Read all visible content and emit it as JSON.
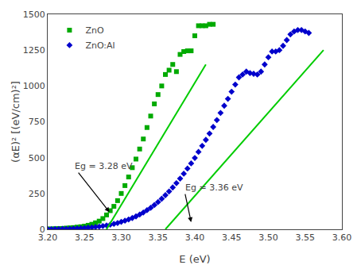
{
  "chart_data": {
    "type": "scatter",
    "xlabel": "E (eV)",
    "ylabel": "(αE)² [(eV/cm)²]",
    "xlim": [
      3.2,
      3.6
    ],
    "ylim": [
      0,
      1500
    ],
    "xticks": [
      {
        "value": 3.2,
        "label": "3.20"
      },
      3.25,
      {
        "value": 3.3,
        "label": "3.30"
      },
      3.35,
      {
        "value": 3.4,
        "label": "3.40"
      },
      3.45,
      {
        "value": 3.5,
        "label": "3.50"
      },
      3.55,
      {
        "value": 3.6,
        "label": "3.60"
      }
    ],
    "yticks": [
      0,
      250,
      500,
      750,
      1000,
      1250,
      1500
    ],
    "grid": false,
    "legend": "upper left",
    "series": [
      {
        "name": "ZnO",
        "type": "scatter",
        "color": "#00aa00",
        "marker": "square",
        "x": [
          3.2,
          3.205,
          3.21,
          3.215,
          3.22,
          3.225,
          3.23,
          3.235,
          3.24,
          3.245,
          3.25,
          3.255,
          3.26,
          3.265,
          3.27,
          3.275,
          3.28,
          3.285,
          3.29,
          3.295,
          3.3,
          3.305,
          3.31,
          3.315,
          3.32,
          3.325,
          3.33,
          3.335,
          3.34,
          3.345,
          3.35,
          3.355,
          3.36,
          3.365,
          3.37,
          3.375,
          3.38,
          3.385,
          3.39,
          3.395,
          3.4,
          3.405,
          3.41,
          3.415,
          3.42,
          3.425
        ],
        "values": [
          2,
          3,
          4,
          5,
          6,
          8,
          10,
          12,
          15,
          18,
          22,
          28,
          35,
          45,
          57,
          75,
          100,
          130,
          160,
          200,
          250,
          305,
          365,
          430,
          490,
          560,
          630,
          710,
          790,
          875,
          940,
          1000,
          1080,
          1110,
          1150,
          1100,
          1220,
          1240,
          1245,
          1245,
          1350,
          1420,
          1420,
          1420,
          1430,
          1430
        ]
      },
      {
        "name": "ZnO:Al",
        "type": "scatter",
        "color": "#0000cc",
        "marker": "diamond",
        "x": [
          3.2,
          3.205,
          3.21,
          3.215,
          3.22,
          3.225,
          3.23,
          3.235,
          3.24,
          3.245,
          3.25,
          3.255,
          3.26,
          3.265,
          3.27,
          3.275,
          3.28,
          3.285,
          3.29,
          3.295,
          3.3,
          3.305,
          3.31,
          3.315,
          3.32,
          3.325,
          3.33,
          3.335,
          3.34,
          3.345,
          3.35,
          3.355,
          3.36,
          3.365,
          3.37,
          3.375,
          3.38,
          3.385,
          3.39,
          3.395,
          3.4,
          3.405,
          3.41,
          3.415,
          3.42,
          3.425,
          3.43,
          3.435,
          3.44,
          3.445,
          3.45,
          3.455,
          3.46,
          3.465,
          3.47,
          3.475,
          3.48,
          3.485,
          3.49,
          3.495,
          3.5,
          3.505,
          3.51,
          3.515,
          3.52,
          3.525,
          3.53,
          3.535,
          3.54,
          3.545,
          3.55,
          3.555
        ],
        "values": [
          1,
          1,
          2,
          2,
          3,
          3,
          4,
          5,
          6,
          7,
          9,
          11,
          13,
          16,
          19,
          23,
          27,
          32,
          38,
          44,
          52,
          60,
          69,
          79,
          90,
          103,
          117,
          133,
          150,
          169,
          190,
          213,
          238,
          264,
          292,
          322,
          354,
          388,
          424,
          460,
          498,
          540,
          582,
          624,
          668,
          714,
          762,
          812,
          862,
          910,
          960,
          1010,
          1060,
          1080,
          1100,
          1090,
          1085,
          1080,
          1100,
          1150,
          1200,
          1240,
          1240,
          1250,
          1280,
          1320,
          1360,
          1380,
          1390,
          1390,
          1380,
          1370
        ]
      },
      {
        "type": "line",
        "color": "#00cc00",
        "line_style": "solid",
        "x": [
          3.28,
          3.415
        ],
        "values": [
          0,
          1150
        ]
      },
      {
        "type": "line",
        "color": "#00cc00",
        "line_style": "solid",
        "x": [
          3.36,
          3.575
        ],
        "values": [
          0,
          1250
        ]
      }
    ],
    "annotations": [
      {
        "text": "Eg = 3.28 eV",
        "x": 3.235,
        "y": 440,
        "arrow_x": 3.284,
        "arrow_y": 120
      },
      {
        "text": "Eg = 3.36 eV",
        "x": 3.385,
        "y": 290,
        "arrow_x": 3.395,
        "arrow_y": 50
      }
    ]
  }
}
